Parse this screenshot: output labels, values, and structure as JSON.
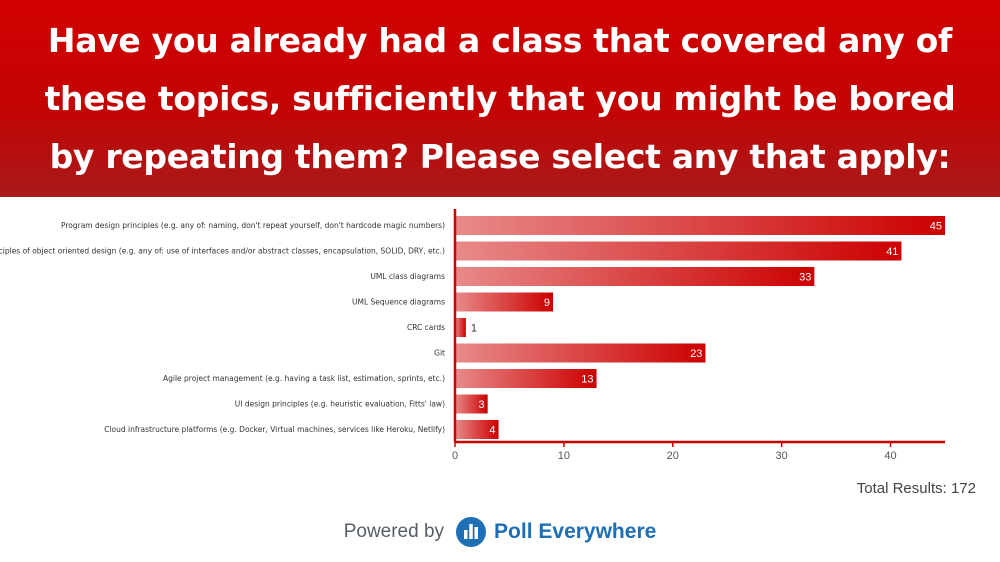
{
  "header": {
    "title": "Have you already had a class that covered any of these topics, sufficiently that you might be bored by repeating them? Please select any that apply:"
  },
  "chart_data": {
    "type": "bar",
    "orientation": "horizontal",
    "categories": [
      "Program design principles (e.g. any of: naming, don't repeat yourself, don't hardcode magic numbers)",
      "Principles of object oriented design (e.g. any of: use of interfaces and/or abstract classes, encapsulation, SOLID, DRY, etc.)",
      "UML class diagrams",
      "UML Sequence diagrams",
      "CRC cards",
      "Git",
      "Agile project management (e.g. having a task list, estimation, sprints, etc.)",
      "UI design principles (e.g. heuristic evaluation, Fitts' law)",
      "Cloud infrastructure platforms (e.g. Docker, Virtual machines, services like Heroku, Netlify)"
    ],
    "values": [
      45,
      41,
      33,
      9,
      1,
      23,
      13,
      3,
      4
    ],
    "xlim": [
      0,
      45
    ],
    "xticks": [
      0,
      10,
      20,
      30,
      40
    ],
    "grid": false,
    "bar_color": "#cc0000"
  },
  "total": {
    "label": "Total Results:",
    "value": "172"
  },
  "footer": {
    "powered_by": "Powered by",
    "brand": "Poll Everywhere"
  }
}
